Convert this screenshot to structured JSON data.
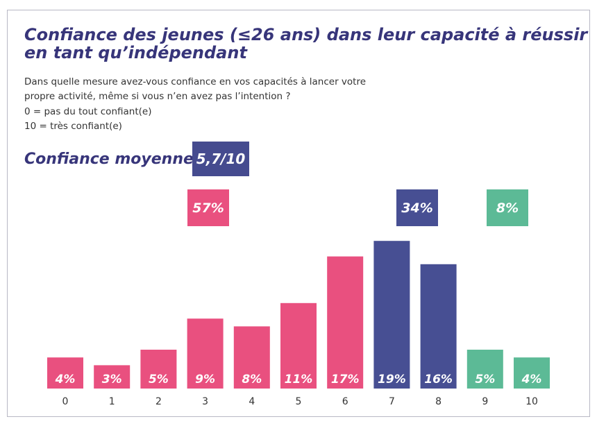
{
  "chart_data": {
    "type": "bar",
    "title": [
      "Confiance des jeunes (≤26 ans) dans leur capacité à réussir",
      "en tant qu’indépendant"
    ],
    "subtitle": [
      "Dans quelle mesure avez-vous confiance en vos capacités à lancer votre",
      "propre activité, même si vous n’en avez pas l’intention ?",
      "0 = pas du tout confiant(e)",
      "10 = très confiant(e)"
    ],
    "average_label": "Confiance moyenne",
    "average_value": "5,7/10",
    "average_color": "#454b8f",
    "categories": [
      "0",
      "1",
      "2",
      "3",
      "4",
      "5",
      "6",
      "7",
      "8",
      "9",
      "10"
    ],
    "values": [
      4,
      3,
      5,
      9,
      8,
      11,
      17,
      19,
      16,
      5,
      4
    ],
    "value_labels": [
      "4%",
      "3%",
      "5%",
      "9%",
      "8%",
      "11%",
      "17%",
      "19%",
      "16%",
      "5%",
      "4%"
    ],
    "colors": [
      "#e9507f",
      "#e9507f",
      "#e9507f",
      "#e9507f",
      "#e9507f",
      "#e9507f",
      "#e9507f",
      "#474f93",
      "#474f93",
      "#5cba96",
      "#5cba96"
    ],
    "annotations": [
      {
        "text": "57%",
        "color": "#e9507f"
      },
      {
        "text": "34%",
        "color": "#474f93"
      },
      {
        "text": "8%",
        "color": "#5cba96"
      }
    ]
  }
}
